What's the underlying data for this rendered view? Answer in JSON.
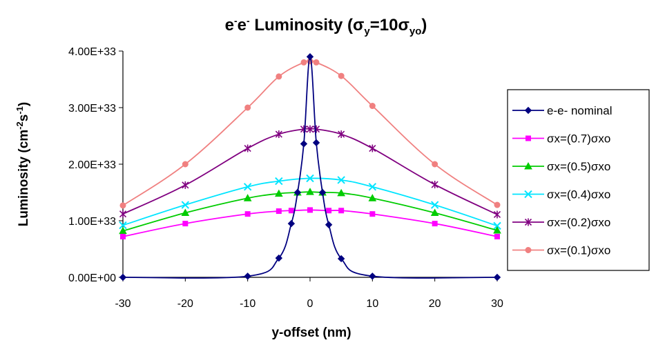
{
  "chart_data": {
    "type": "line",
    "title": {
      "prefix": "e",
      "sup1": "-",
      "middle": "e",
      "sup2": "-",
      "rest": " Luminosity (σ",
      "sub1": "y",
      "eq": "=10σ",
      "sub2": "yo",
      "close": ")"
    },
    "xlabel": "y-offset (nm)",
    "ylabel": {
      "main": "Luminosity (cm",
      "sup1": "-2",
      "mid": "s",
      "sup2": "-1",
      "close": ")"
    },
    "xlim": [
      -30,
      30
    ],
    "ylim": [
      0,
      4e+33
    ],
    "xticks": [
      -30,
      -20,
      -10,
      0,
      10,
      20,
      30
    ],
    "xtick_labels": [
      "-30",
      "-20",
      "-10",
      "0",
      "10",
      "20",
      "30"
    ],
    "yticks": [
      0,
      1e+33,
      2e+33,
      3e+33,
      4e+33
    ],
    "ytick_labels": [
      "0.00E+00",
      "1.00E+33",
      "2.00E+33",
      "3.00E+33",
      "4.00E+33"
    ],
    "grid": false,
    "legend_position": "right",
    "series": [
      {
        "name": "e-e- nominal",
        "color": "#000080",
        "marker": "diamond",
        "x": [
          -30,
          -10,
          -5,
          -3,
          -2,
          -1,
          0,
          1,
          2,
          3,
          5,
          10,
          30
        ],
        "y": [
          0,
          2e+31,
          3.4e+32,
          9.5e+32,
          1.5e+33,
          2.36e+33,
          3.9e+33,
          2.38e+33,
          1.5e+33,
          9.3e+32,
          3.3e+32,
          2e+31,
          0
        ]
      },
      {
        "name": "σx=(0.7)σxo",
        "color": "#FF00FF",
        "marker": "square",
        "x": [
          -30,
          -20,
          -10,
          -5,
          -3,
          0,
          3,
          5,
          10,
          20,
          30
        ],
        "y": [
          7.2e+32,
          9.5e+32,
          1.12e+33,
          1.17e+33,
          1.18e+33,
          1.19e+33,
          1.18e+33,
          1.18e+33,
          1.12e+33,
          9.5e+32,
          7.2e+32
        ]
      },
      {
        "name": "σx=(0.5)σxo",
        "color": "#00CC00",
        "marker": "triangle",
        "x": [
          -30,
          -20,
          -10,
          -5,
          -2,
          0,
          2,
          5,
          10,
          20,
          30
        ],
        "y": [
          8.2e+32,
          1.14e+33,
          1.4e+33,
          1.48e+33,
          1.5e+33,
          1.51e+33,
          1.5e+33,
          1.49e+33,
          1.4e+33,
          1.14e+33,
          8.3e+32
        ]
      },
      {
        "name": "σx=(0.4)σxo",
        "color": "#00E5FF",
        "marker": "x",
        "x": [
          -30,
          -20,
          -10,
          -5,
          0,
          5,
          10,
          20,
          30
        ],
        "y": [
          9.2e+32,
          1.28e+33,
          1.6e+33,
          1.7e+33,
          1.75e+33,
          1.72e+33,
          1.6e+33,
          1.28e+33,
          9.1e+32
        ]
      },
      {
        "name": "σx=(0.2)σxo",
        "color": "#800080",
        "marker": "star",
        "x": [
          -30,
          -20,
          -10,
          -5,
          -1,
          0,
          1,
          5,
          10,
          20,
          30
        ],
        "y": [
          1.12e+33,
          1.63e+33,
          2.28e+33,
          2.53e+33,
          2.62e+33,
          2.62e+33,
          2.62e+33,
          2.53e+33,
          2.28e+33,
          1.64e+33,
          1.11e+33
        ]
      },
      {
        "name": "σx=(0.1)σxo",
        "color": "#F08080",
        "marker": "circle",
        "x": [
          -30,
          -20,
          -10,
          -5,
          -1,
          0,
          1,
          5,
          10,
          20,
          30
        ],
        "y": [
          1.27e+33,
          2e+33,
          3e+33,
          3.55e+33,
          3.8e+33,
          3.82e+33,
          3.8e+33,
          3.56e+33,
          3.03e+33,
          2e+33,
          1.28e+33
        ]
      }
    ]
  }
}
